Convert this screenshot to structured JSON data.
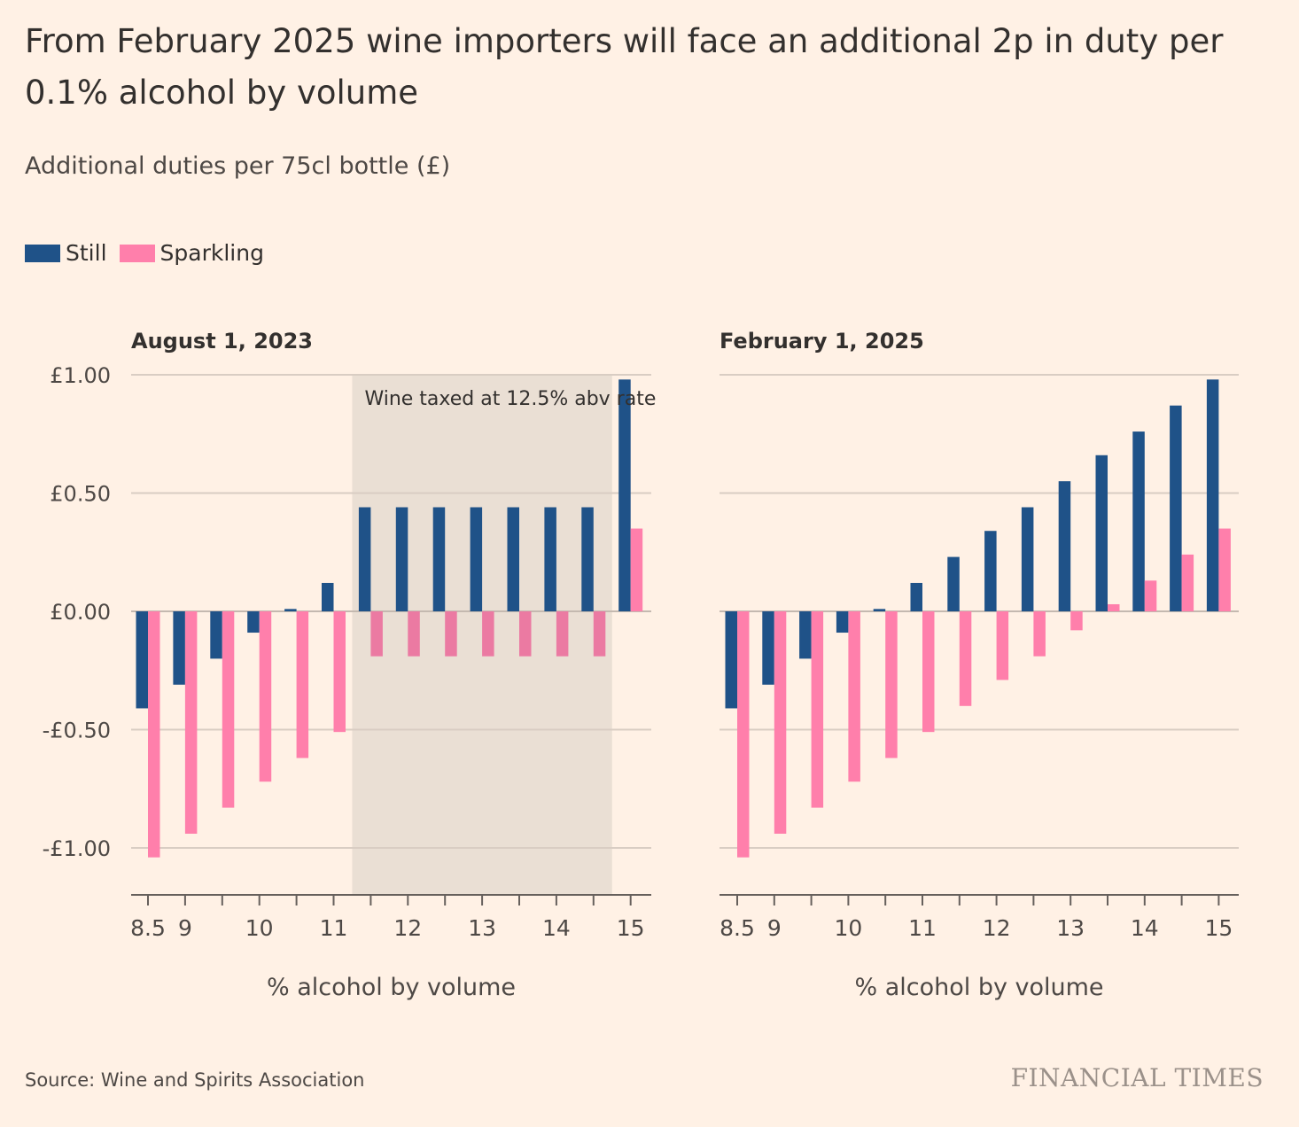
{
  "title": "From February 2025 wine importers will face an additional 2p in duty per 0.1% alcohol by volume",
  "subtitle": "Additional duties per 75cl bottle (£)",
  "legend": [
    {
      "name": "Still",
      "color": "#1f5288"
    },
    {
      "name": "Sparkling",
      "color": "#ff7fab"
    }
  ],
  "source": "Source: Wine and Spirits Association",
  "brand": "FINANCIAL TIMES",
  "chart_data": [
    {
      "type": "bar",
      "title": "August 1, 2023",
      "xlabel": "% alcohol by volume",
      "ylabel": "",
      "ylim": [
        -1.2,
        1.0
      ],
      "yticks": [
        1.0,
        0.5,
        0.0,
        -0.5,
        -1.0
      ],
      "ytick_labels": [
        "£1.00",
        "£0.50",
        "£0.00",
        "-£0.50",
        "-£1.00"
      ],
      "xticks": [
        8.5,
        9,
        10,
        11,
        12,
        13,
        14,
        15
      ],
      "xtick_labels": [
        "8.5",
        "9",
        "10",
        "11",
        "12",
        "13",
        "14",
        "15"
      ],
      "categories": [
        8.5,
        9,
        9.5,
        10,
        10.5,
        11,
        11.5,
        12,
        12.5,
        13,
        13.5,
        14,
        14.5,
        15
      ],
      "series": [
        {
          "name": "Still",
          "values": [
            -0.41,
            -0.31,
            -0.2,
            -0.09,
            0.01,
            0.12,
            0.44,
            0.44,
            0.44,
            0.44,
            0.44,
            0.44,
            0.44,
            0.98
          ]
        },
        {
          "name": "Sparkling",
          "values": [
            -1.04,
            -0.94,
            -0.83,
            -0.72,
            -0.62,
            -0.51,
            -0.19,
            -0.19,
            -0.19,
            -0.19,
            -0.19,
            -0.19,
            -0.19,
            0.35
          ]
        }
      ],
      "shaded_region": {
        "from": 11.25,
        "to": 14.75,
        "label": "Wine taxed at 12.5% abv rate"
      },
      "grid": true
    },
    {
      "type": "bar",
      "title": "February 1, 2025",
      "xlabel": "% alcohol by volume",
      "ylabel": "",
      "ylim": [
        -1.2,
        1.0
      ],
      "yticks": [
        1.0,
        0.5,
        0.0,
        -0.5,
        -1.0
      ],
      "xticks": [
        8.5,
        9,
        10,
        11,
        12,
        13,
        14,
        15
      ],
      "xtick_labels": [
        "8.5",
        "9",
        "10",
        "11",
        "12",
        "13",
        "14",
        "15"
      ],
      "categories": [
        8.5,
        9,
        9.5,
        10,
        10.5,
        11,
        11.5,
        12,
        12.5,
        13,
        13.5,
        14,
        14.5,
        15
      ],
      "series": [
        {
          "name": "Still",
          "values": [
            -0.41,
            -0.31,
            -0.2,
            -0.09,
            0.01,
            0.12,
            0.23,
            0.34,
            0.44,
            0.55,
            0.66,
            0.76,
            0.87,
            0.98
          ]
        },
        {
          "name": "Sparkling",
          "values": [
            -1.04,
            -0.94,
            -0.83,
            -0.72,
            -0.62,
            -0.51,
            -0.4,
            -0.29,
            -0.19,
            -0.08,
            0.03,
            0.13,
            0.24,
            0.35
          ]
        }
      ],
      "grid": true
    }
  ]
}
